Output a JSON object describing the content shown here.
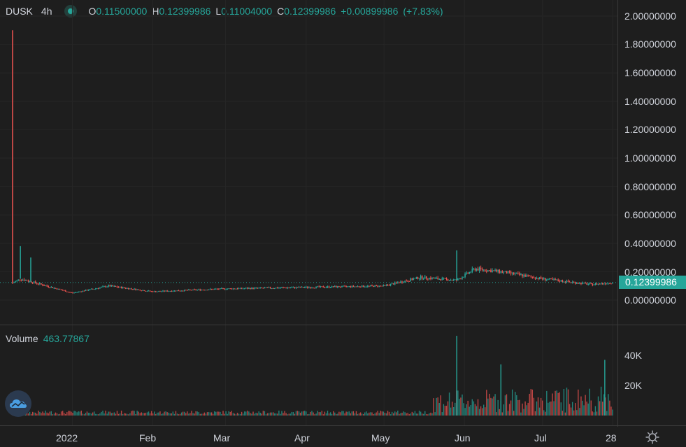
{
  "header": {
    "symbol": "DUSK",
    "timeframe": "4h",
    "o_label": "O",
    "o_value": "0.11500000",
    "h_label": "H",
    "h_value": "0.12399986",
    "l_label": "L",
    "l_value": "0.11004000",
    "c_label": "C",
    "c_value": "0.12399986",
    "change": "+0.00899986",
    "change_pct": "(+7.83%)"
  },
  "price_axis": [
    "2.00000000",
    "1.80000000",
    "1.60000000",
    "1.40000000",
    "1.20000000",
    "1.00000000",
    "0.80000000",
    "0.60000000",
    "0.40000000",
    "0.20000000",
    "0.00000000"
  ],
  "current_price": "0.12399986",
  "volume": {
    "label": "Volume",
    "value": "463.77867",
    "axis": [
      "40K",
      "20K"
    ]
  },
  "time_axis": [
    "2022",
    "Feb",
    "Mar",
    "Apr",
    "May",
    "Jun",
    "Jul",
    "28"
  ],
  "colors": {
    "up": "#26a69a",
    "down": "#ef5350",
    "background": "#1e1e1e"
  },
  "icons": {
    "logo": "tradingview-cloud-icon",
    "settings": "gear-icon"
  },
  "chart_data": {
    "type": "candlestick",
    "symbol": "DUSK",
    "interval": "4h",
    "x_range": [
      "2021-12-09",
      "2022-07-28"
    ],
    "ylim": [
      0,
      2.0
    ],
    "approx_close_path": [
      {
        "x": "2021-12-09",
        "y": 0.12,
        "high": 1.9
      },
      {
        "x": "2021-12-12",
        "y": 0.15,
        "high": 0.38
      },
      {
        "x": "2021-12-16",
        "y": 0.13,
        "high": 0.3
      },
      {
        "x": "2022-01-01",
        "y": 0.05
      },
      {
        "x": "2022-01-15",
        "y": 0.1
      },
      {
        "x": "2022-02-01",
        "y": 0.06
      },
      {
        "x": "2022-03-01",
        "y": 0.08
      },
      {
        "x": "2022-04-01",
        "y": 0.09
      },
      {
        "x": "2022-05-01",
        "y": 0.1
      },
      {
        "x": "2022-05-15",
        "y": 0.16
      },
      {
        "x": "2022-05-29",
        "y": 0.14,
        "high": 0.35
      },
      {
        "x": "2022-06-05",
        "y": 0.22
      },
      {
        "x": "2022-06-15",
        "y": 0.2
      },
      {
        "x": "2022-07-01",
        "y": 0.15
      },
      {
        "x": "2022-07-20",
        "y": 0.11
      },
      {
        "x": "2022-07-28",
        "y": 0.124
      }
    ],
    "volume_ylim": [
      0,
      55000
    ],
    "volume_peaks": [
      {
        "x": "2022-05-29",
        "v": 53000
      },
      {
        "x": "2022-06-15",
        "v": 34000
      },
      {
        "x": "2022-07-25",
        "v": 37000
      }
    ]
  }
}
